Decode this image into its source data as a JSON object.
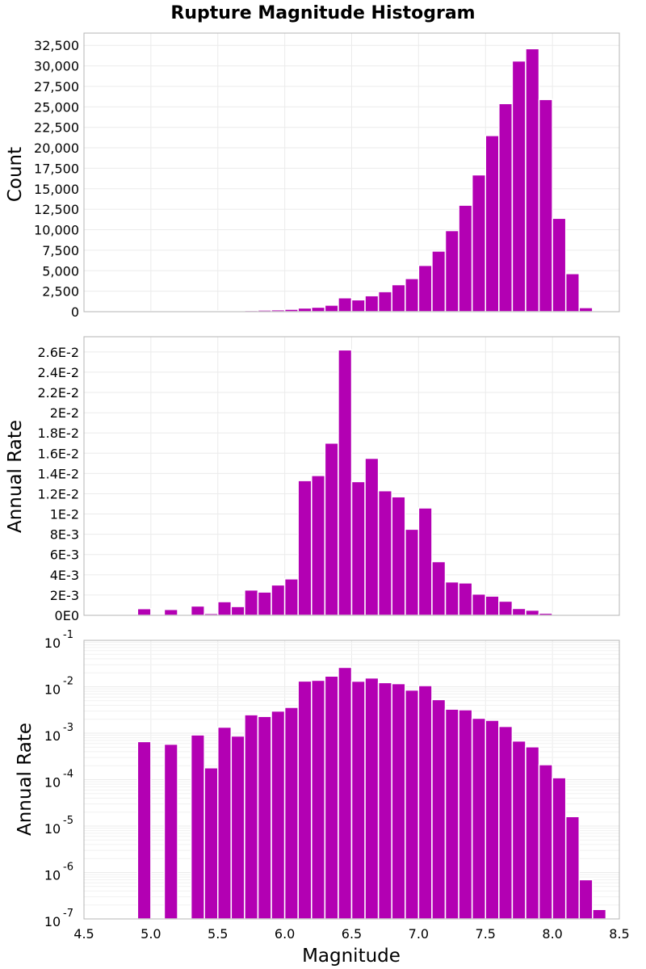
{
  "colors": {
    "bar": "#b300b3",
    "grid": "#ebebeb",
    "frame": "#b5b5b5"
  },
  "chart_data": {
    "type": "bar",
    "title": "Rupture Magnitude Histogram",
    "xlabel": "Magnitude",
    "xlim": [
      4.5,
      8.5
    ],
    "x_ticks": [
      "4.5",
      "5.0",
      "5.5",
      "6.0",
      "6.5",
      "7.0",
      "7.5",
      "8.0",
      "8.5"
    ],
    "bin_width": 0.1,
    "bin_centers": [
      4.95,
      5.05,
      5.15,
      5.25,
      5.35,
      5.45,
      5.55,
      5.65,
      5.75,
      5.85,
      5.95,
      6.05,
      6.15,
      6.25,
      6.35,
      6.45,
      6.55,
      6.65,
      6.75,
      6.85,
      6.95,
      7.05,
      7.15,
      7.25,
      7.35,
      7.45,
      7.55,
      7.65,
      7.75,
      7.85,
      7.95,
      8.05,
      8.15,
      8.25,
      8.35
    ],
    "panels": [
      {
        "ylabel": "Count",
        "scale": "linear",
        "ylim": [
          0,
          34000
        ],
        "y_ticks": [
          0,
          2500,
          5000,
          7500,
          10000,
          12500,
          15000,
          17500,
          20000,
          22500,
          25000,
          27500,
          30000,
          32500
        ],
        "y_tick_labels": [
          "0",
          "2,500",
          "5,000",
          "7,500",
          "10,000",
          "12,500",
          "15,000",
          "17,500",
          "20,000",
          "22,500",
          "25,000",
          "27,500",
          "30,000",
          "32,500"
        ],
        "values": [
          40,
          30,
          50,
          40,
          60,
          80,
          100,
          130,
          160,
          200,
          230,
          300,
          450,
          550,
          800,
          1700,
          1450,
          1950,
          2450,
          3300,
          4050,
          5650,
          7400,
          9900,
          13000,
          16700,
          21500,
          25400,
          30600,
          32100,
          25900,
          11400,
          4650,
          500,
          0
        ]
      },
      {
        "ylabel": "Annual Rate",
        "scale": "linear",
        "ylim": [
          0,
          0.0275
        ],
        "y_ticks": [
          0,
          0.002,
          0.004,
          0.006,
          0.008,
          0.01,
          0.012,
          0.014,
          0.016,
          0.018,
          0.02,
          0.022,
          0.024,
          0.026
        ],
        "y_tick_labels": [
          "0E0",
          "2E-3",
          "4E-3",
          "6E-3",
          "8E-3",
          "1E-2",
          "1.2E-2",
          "1.4E-2",
          "1.6E-2",
          "1.8E-2",
          "2E-2",
          "2.2E-2",
          "2.4E-2",
          "2.6E-2"
        ],
        "values": [
          0.00066,
          0,
          0.00058,
          0,
          0.00092,
          0.00018,
          0.00135,
          0.00087,
          0.0025,
          0.0023,
          0.003,
          0.0036,
          0.0133,
          0.0138,
          0.017,
          0.0262,
          0.0132,
          0.0155,
          0.0123,
          0.0117,
          0.0085,
          0.0106,
          0.0053,
          0.0033,
          0.0032,
          0.0021,
          0.0019,
          0.0014,
          0.00068,
          0.00051,
          0.00021,
          0.00011,
          1.6e-05,
          7e-07,
          1.6e-07
        ]
      },
      {
        "ylabel": "Annual Rate",
        "scale": "log",
        "ylim": [
          1e-07,
          0.1
        ],
        "y_tick_exponents": [
          -1,
          -2,
          -3,
          -4,
          -5,
          -6,
          -7
        ],
        "y_tick_base": "10",
        "values": [
          0.00066,
          0,
          0.00058,
          0,
          0.00092,
          0.00018,
          0.00135,
          0.00087,
          0.0025,
          0.0023,
          0.003,
          0.0036,
          0.0133,
          0.0138,
          0.017,
          0.0262,
          0.0132,
          0.0155,
          0.0123,
          0.0117,
          0.0085,
          0.0106,
          0.0053,
          0.0033,
          0.0032,
          0.0021,
          0.0019,
          0.0014,
          0.00068,
          0.00051,
          0.00021,
          0.00011,
          1.6e-05,
          7e-07,
          1.6e-07
        ]
      }
    ]
  }
}
